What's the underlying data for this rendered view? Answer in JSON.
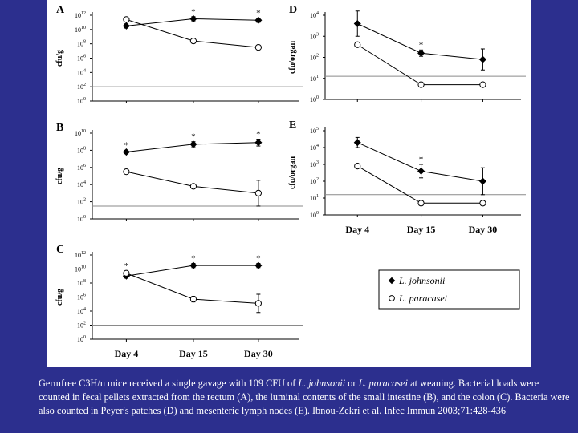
{
  "chart_data": [
    {
      "type": "line",
      "panel": "A",
      "ylabel": "cfu/g",
      "ytick_exponents": [
        0,
        2,
        4,
        6,
        8,
        10,
        12
      ],
      "ytick_base": "10",
      "ylim_log10": [
        0,
        12
      ],
      "detection_limit_log10": 2,
      "categories": [
        "Day 4",
        "Day 15",
        "Day 30"
      ],
      "series": [
        {
          "name": "L. johnsonii",
          "marker": "filled",
          "values_log10": [
            10.5,
            11.5,
            11.3
          ],
          "err_log10": [
            0.3,
            0.3,
            0.3
          ]
        },
        {
          "name": "L. paracasei",
          "marker": "open",
          "values_log10": [
            11.4,
            8.4,
            7.5
          ],
          "err_log10": [
            0.3,
            0.3,
            0.3
          ]
        }
      ],
      "significance": [
        false,
        true,
        true
      ]
    },
    {
      "type": "line",
      "panel": "B",
      "ylabel": "cfu/g",
      "ytick_exponents": [
        0,
        2,
        4,
        6,
        8,
        10
      ],
      "ytick_base": "10",
      "ylim_log10": [
        0,
        10
      ],
      "detection_limit_log10": 1.5,
      "categories": [
        "Day 4",
        "Day 15",
        "Day 30"
      ],
      "series": [
        {
          "name": "L. johnsonii",
          "marker": "filled",
          "values_log10": [
            7.8,
            8.7,
            8.9
          ],
          "err_log10": [
            0.2,
            0.3,
            0.4
          ]
        },
        {
          "name": "L. paracasei",
          "marker": "open",
          "values_log10": [
            5.5,
            3.8,
            3.0
          ],
          "err_log10": [
            0.2,
            0.2,
            1.5
          ]
        }
      ],
      "significance": [
        true,
        true,
        true
      ]
    },
    {
      "type": "line",
      "panel": "C",
      "ylabel": "cfu/g",
      "ytick_exponents": [
        0,
        2,
        4,
        6,
        8,
        10,
        12
      ],
      "ytick_base": "10",
      "ylim_log10": [
        0,
        12
      ],
      "detection_limit_log10": 2,
      "categories": [
        "Day 4",
        "Day 15",
        "Day 30"
      ],
      "series": [
        {
          "name": "L. johnsonii",
          "marker": "filled",
          "values_log10": [
            9.0,
            10.5,
            10.5
          ],
          "err_log10": [
            0.3,
            0.3,
            0.3
          ]
        },
        {
          "name": "L. paracasei",
          "marker": "open",
          "values_log10": [
            9.4,
            5.7,
            5.1
          ],
          "err_log10": [
            0.3,
            0.4,
            1.3
          ]
        }
      ],
      "significance": [
        true,
        true,
        true
      ]
    },
    {
      "type": "line",
      "panel": "D",
      "ylabel": "cfu/organ",
      "ytick_exponents": [
        0,
        1,
        2,
        3,
        4
      ],
      "ytick_base": "10",
      "ylim_log10": [
        0,
        4
      ],
      "detection_limit_log10": 1.1,
      "categories": [
        "Day 4",
        "Day 15",
        "Day 30"
      ],
      "series": [
        {
          "name": "L. johnsonii",
          "marker": "filled",
          "values_log10": [
            3.6,
            2.2,
            1.9
          ],
          "err_log10": [
            0.6,
            0.15,
            0.5
          ]
        },
        {
          "name": "L. paracasei",
          "marker": "open",
          "values_log10": [
            2.6,
            0.7,
            0.7
          ],
          "err_log10": [
            0.1,
            0.05,
            0.05
          ]
        }
      ],
      "significance": [
        false,
        true,
        false
      ]
    },
    {
      "type": "line",
      "panel": "E",
      "ylabel": "cfu/organ",
      "ytick_exponents": [
        0,
        1,
        2,
        3,
        4,
        5
      ],
      "ytick_base": "10",
      "ylim_log10": [
        0,
        5
      ],
      "detection_limit_log10": 1.2,
      "categories": [
        "Day 4",
        "Day 15",
        "Day 30"
      ],
      "series": [
        {
          "name": "L. johnsonii",
          "marker": "filled",
          "values_log10": [
            4.3,
            2.6,
            2.0
          ],
          "err_log10": [
            0.3,
            0.4,
            0.8
          ]
        },
        {
          "name": "L. paracasei",
          "marker": "open",
          "values_log10": [
            2.9,
            0.7,
            0.7
          ],
          "err_log10": [
            0.1,
            0.05,
            0.05
          ]
        }
      ],
      "significance": [
        false,
        true,
        false
      ]
    }
  ],
  "x_axis_labels": [
    "Day 4",
    "Day 15",
    "Day 30"
  ],
  "legend": [
    {
      "marker": "filled",
      "label": "L. johnsonii"
    },
    {
      "marker": "open",
      "label": "L. paracasei"
    }
  ],
  "significance_marker": "*",
  "colors": {
    "background": "#2c2f8e",
    "figure": "#ffffff",
    "detection_line": "#8a8a8a",
    "caption_text": "#ffffff"
  },
  "caption": {
    "part1": "Germfree C3H/n mice received a single gavage with 109 CFU of ",
    "species1": "L. johnsonii",
    "part2": " or ",
    "species2": "L. paracasei",
    "part3": " at weaning. Bacterial loads were counted in fecal pellets extracted from the rectum (A), the luminal contents of the small intestine (B), and the colon (C). Bacteria were also counted in Peyer's patches (D) and mesenteric lymph nodes (E). Ibnou-Zekri et al. Infec Immun 2003;71:428-436"
  }
}
